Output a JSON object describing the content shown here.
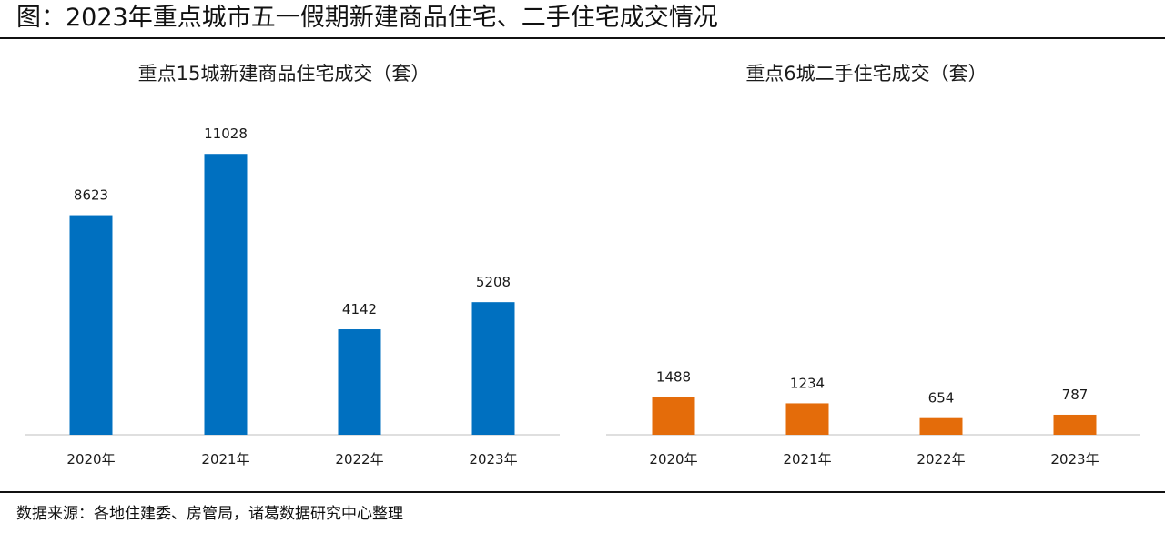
{
  "figure_title": "图：2023年重点城市五一假期新建商品住宅、二手住宅成交情况",
  "source": "数据来源：各地住建委、房管局，诸葛数据研究中心整理",
  "chart_data": [
    {
      "type": "bar",
      "title": "重点15城新建商品住宅成交（套）",
      "categories": [
        "2020年",
        "2021年",
        "2022年",
        "2023年"
      ],
      "values": [
        8623,
        11028,
        4142,
        5208
      ],
      "color": "#0070C0",
      "ylim": [
        0,
        12500
      ],
      "grid": false,
      "legend": "none"
    },
    {
      "type": "bar",
      "title": "重点6城二手住宅成交（套）",
      "categories": [
        "2020年",
        "2021年",
        "2022年",
        "2023年"
      ],
      "values": [
        1488,
        1234,
        654,
        787
      ],
      "color": "#E46C0A",
      "ylim": [
        0,
        12500
      ],
      "grid": false,
      "legend": "none"
    }
  ]
}
